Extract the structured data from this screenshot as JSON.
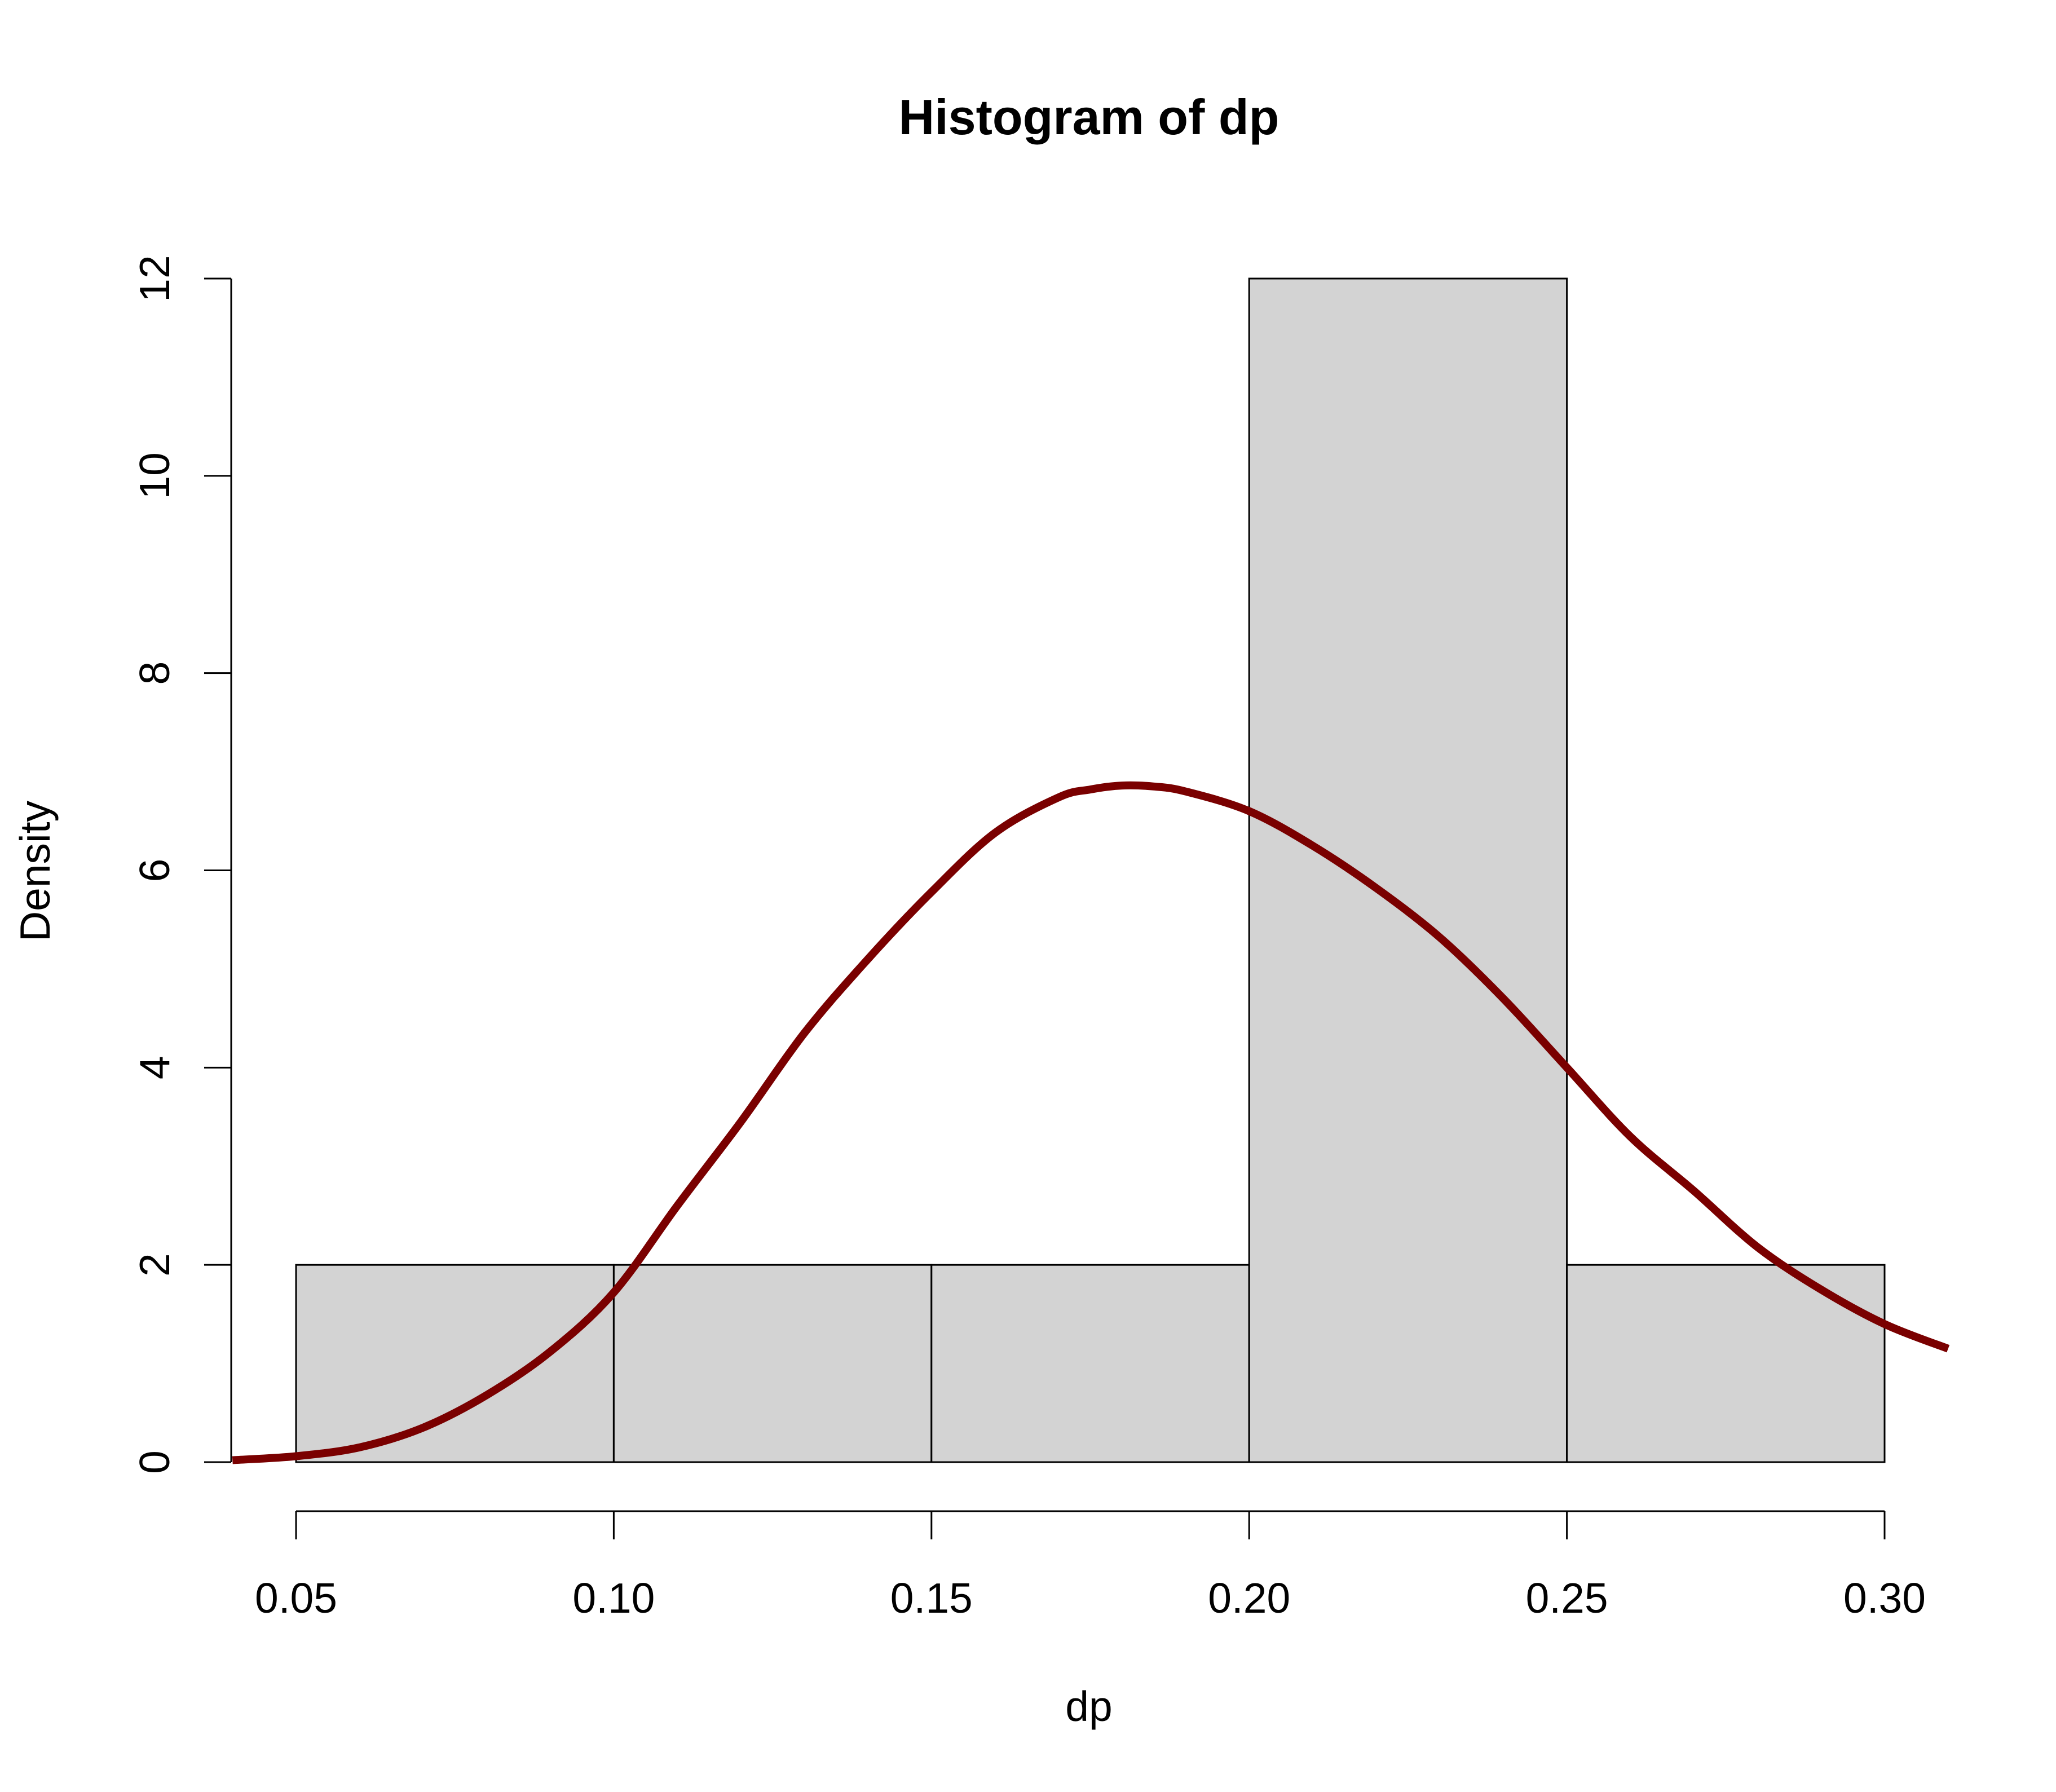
{
  "chart_data": {
    "type": "bar",
    "subtype": "histogram with density curve",
    "title": "Histogram of dp",
    "xlabel": "dp",
    "ylabel": "Density",
    "xlim": [
      0.03,
      0.31
    ],
    "ylim": [
      0,
      12
    ],
    "bins": [
      {
        "x0": 0.05,
        "x1": 0.1,
        "density": 2
      },
      {
        "x0": 0.1,
        "x1": 0.15,
        "density": 2
      },
      {
        "x0": 0.15,
        "x1": 0.2,
        "density": 2
      },
      {
        "x0": 0.2,
        "x1": 0.25,
        "density": 12
      },
      {
        "x0": 0.25,
        "x1": 0.3,
        "density": 2
      }
    ],
    "x_ticks": [
      {
        "value": 0.05,
        "label": "0.05"
      },
      {
        "value": 0.1,
        "label": "0.10"
      },
      {
        "value": 0.15,
        "label": "0.15"
      },
      {
        "value": 0.2,
        "label": "0.20"
      },
      {
        "value": 0.25,
        "label": "0.25"
      },
      {
        "value": 0.3,
        "label": "0.30"
      }
    ],
    "y_ticks": [
      {
        "value": 0,
        "label": "0"
      },
      {
        "value": 2,
        "label": "2"
      },
      {
        "value": 4,
        "label": "4"
      },
      {
        "value": 6,
        "label": "6"
      },
      {
        "value": 8,
        "label": "8"
      },
      {
        "value": 10,
        "label": "10"
      },
      {
        "value": 12,
        "label": "12"
      }
    ],
    "density_curve": {
      "x": [
        0.04,
        0.05,
        0.06,
        0.07,
        0.08,
        0.09,
        0.1,
        0.11,
        0.12,
        0.13,
        0.14,
        0.15,
        0.16,
        0.17,
        0.175,
        0.18,
        0.185,
        0.19,
        0.2,
        0.21,
        0.22,
        0.23,
        0.24,
        0.25,
        0.26,
        0.27,
        0.28,
        0.29,
        0.3,
        0.31
      ],
      "y": [
        0.02,
        0.06,
        0.15,
        0.35,
        0.68,
        1.12,
        1.72,
        2.6,
        3.45,
        4.35,
        5.1,
        5.78,
        6.38,
        6.74,
        6.82,
        6.86,
        6.85,
        6.8,
        6.6,
        6.25,
        5.82,
        5.32,
        4.7,
        4.0,
        3.3,
        2.75,
        2.18,
        1.75,
        1.4,
        1.15
      ]
    },
    "colors": {
      "bar_fill": "#d3d3d3",
      "bar_stroke": "#000000",
      "curve": "#7a0000"
    },
    "grid": false,
    "legend": "none"
  }
}
